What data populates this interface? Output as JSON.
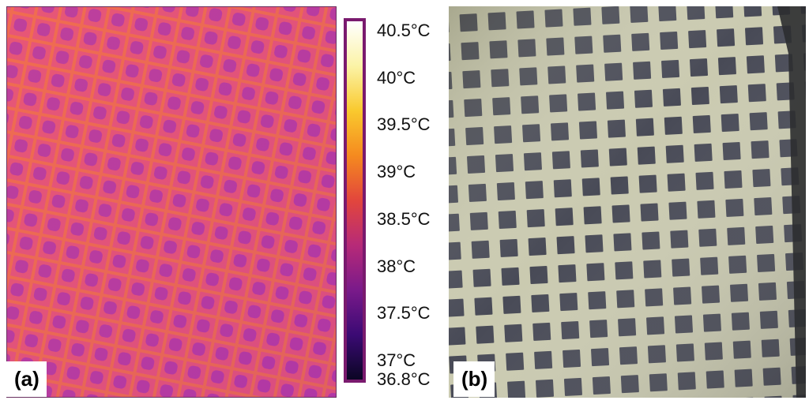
{
  "panels": {
    "a": {
      "label": "(a)"
    },
    "b": {
      "label": "(b)"
    }
  },
  "colorbar": {
    "ticks": [
      "40.5°C",
      "40°C",
      "39.5°C",
      "39°C",
      "38.5°C",
      "38°C",
      "37.5°C",
      "37°C",
      "36.8°C"
    ],
    "tick_values": [
      40.5,
      40,
      39.5,
      39,
      38.5,
      38,
      37.5,
      37,
      36.8
    ],
    "range": [
      36.8,
      40.6
    ],
    "colormap_stops": [
      "#0b0624",
      "#3b0a74",
      "#7a1a8a",
      "#b72a78",
      "#e2463c",
      "#f58a1f",
      "#f9c92e",
      "#fbf3a6",
      "#ffffff"
    ]
  },
  "colors": {
    "thermal_background": "#e8507a",
    "thermal_grid_lines": "#f06a4a",
    "thermal_cells": "#b838a4",
    "photo_background": "#c8c8ac",
    "photo_cells": "#4a4c58",
    "photo_dark_edge": "#2c2e30"
  }
}
